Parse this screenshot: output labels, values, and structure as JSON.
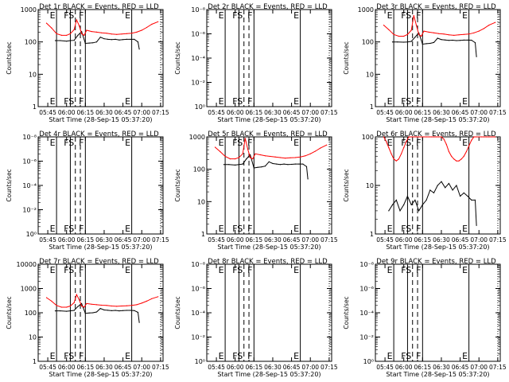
{
  "figure": {
    "ylabel": "Counts/sec",
    "xlabel": "Start Time (28-Sep-15 05:37:20)",
    "time_ticks": [
      "05:45",
      "06:00",
      "06:15",
      "06:30",
      "06:45",
      "07:00",
      "07:15"
    ],
    "event_line_labels": [
      "E",
      "F",
      "S",
      "F",
      "E"
    ],
    "colors": {
      "events": "#000000",
      "lld": "#ff0000",
      "frame": "#000000"
    }
  },
  "chart_data": [
    {
      "type": "line",
      "title": "Det 1r BLACK = Events, RED = LLD",
      "y_scale": "log",
      "yticks": [
        "1",
        "10",
        "100",
        "1000"
      ],
      "ylim": [
        1,
        1000
      ],
      "vlines": [
        {
          "t": "05:52",
          "label": "E",
          "style": "solid"
        },
        {
          "t": "06:03",
          "label": "F",
          "style": "solid"
        },
        {
          "t": "06:07",
          "label": "S",
          "style": "dashed"
        },
        {
          "t": "06:11",
          "label": "",
          "style": "dashed"
        },
        {
          "t": "06:15",
          "label": "F",
          "style": "solid"
        },
        {
          "t": "06:52",
          "label": "E",
          "style": "solid"
        }
      ],
      "series": [
        {
          "name": "Events",
          "color": "#000000",
          "t": [
            "05:51",
            "05:55",
            "06:00",
            "06:03",
            "06:06",
            "06:09",
            "06:12",
            "06:15",
            "06:18",
            "06:21",
            "06:24",
            "06:27",
            "06:30",
            "06:33",
            "06:36",
            "06:39",
            "06:42",
            "06:45",
            "06:48",
            "06:51",
            "06:54",
            "06:57",
            "06:58"
          ],
          "y": [
            110,
            110,
            105,
            110,
            112,
            160,
            210,
            90,
            92,
            94,
            100,
            140,
            125,
            120,
            118,
            120,
            115,
            118,
            120,
            120,
            120,
            100,
            60
          ]
        },
        {
          "name": "LLD",
          "color": "#ff0000",
          "t": [
            "05:44",
            "05:48",
            "05:52",
            "05:56",
            "06:00",
            "06:03",
            "06:06",
            "06:08",
            "06:10",
            "06:12",
            "06:14",
            "06:16",
            "06:20",
            "06:24",
            "06:28",
            "06:32",
            "06:36",
            "06:40",
            "06:44",
            "06:48",
            "06:52",
            "06:56",
            "07:00",
            "07:04",
            "07:08",
            "07:13"
          ],
          "y": [
            380,
            270,
            180,
            160,
            160,
            180,
            240,
            480,
            320,
            180,
            160,
            230,
            210,
            200,
            190,
            185,
            175,
            170,
            175,
            180,
            185,
            200,
            230,
            280,
            350,
            420
          ]
        }
      ]
    },
    {
      "type": "line",
      "title": "Det 2r BLACK = Events, RED = LLD",
      "y_scale": "log",
      "yticks": [
        "10⁰",
        "10⁻²",
        "10⁻⁴",
        "10⁻⁶",
        "10⁻⁸"
      ],
      "ylim": [
        1,
        1e-08
      ],
      "vlines": [
        {
          "t": "05:52",
          "label": "E",
          "style": "solid"
        },
        {
          "t": "06:03",
          "label": "F",
          "style": "solid"
        },
        {
          "t": "06:07",
          "label": "S",
          "style": "dashed"
        },
        {
          "t": "06:11",
          "label": "",
          "style": "dashed"
        },
        {
          "t": "06:15",
          "label": "F",
          "style": "solid"
        },
        {
          "t": "06:52",
          "label": "E",
          "style": "solid"
        }
      ],
      "series": []
    },
    {
      "type": "line",
      "title": "Det 3r BLACK = Events, RED = LLD",
      "y_scale": "log",
      "yticks": [
        "1",
        "10",
        "100",
        "1000"
      ],
      "ylim": [
        1,
        1000
      ],
      "vlines": [
        {
          "t": "05:52",
          "label": "E",
          "style": "solid"
        },
        {
          "t": "06:03",
          "label": "F",
          "style": "solid"
        },
        {
          "t": "06:07",
          "label": "S",
          "style": "dashed"
        },
        {
          "t": "06:11",
          "label": "",
          "style": "dashed"
        },
        {
          "t": "06:15",
          "label": "F",
          "style": "solid"
        },
        {
          "t": "06:52",
          "label": "E",
          "style": "solid"
        }
      ],
      "series": [
        {
          "name": "Events",
          "color": "#000000",
          "t": [
            "05:51",
            "05:55",
            "06:00",
            "06:03",
            "06:06",
            "06:09",
            "06:12",
            "06:15",
            "06:18",
            "06:21",
            "06:24",
            "06:27",
            "06:30",
            "06:33",
            "06:36",
            "06:39",
            "06:42",
            "06:45",
            "06:48",
            "06:51",
            "06:54",
            "06:57",
            "06:58"
          ],
          "y": [
            100,
            100,
            98,
            100,
            104,
            140,
            190,
            85,
            88,
            90,
            96,
            130,
            118,
            115,
            112,
            113,
            110,
            112,
            114,
            114,
            113,
            95,
            35
          ]
        },
        {
          "name": "LLD",
          "color": "#ff0000",
          "t": [
            "05:44",
            "05:48",
            "05:52",
            "05:56",
            "06:00",
            "06:03",
            "06:06",
            "06:08",
            "06:10",
            "06:12",
            "06:14",
            "06:16",
            "06:20",
            "06:24",
            "06:28",
            "06:32",
            "06:36",
            "06:40",
            "06:44",
            "06:48",
            "06:52",
            "06:56",
            "07:00",
            "07:04",
            "07:08",
            "07:13"
          ],
          "y": [
            330,
            240,
            170,
            150,
            150,
            170,
            230,
            650,
            330,
            170,
            150,
            215,
            200,
            190,
            180,
            175,
            165,
            160,
            165,
            170,
            175,
            190,
            215,
            260,
            330,
            400
          ]
        }
      ]
    },
    {
      "type": "line",
      "title": "Det 4r BLACK = Events, RED = LLD",
      "y_scale": "log",
      "yticks": [
        "10⁰",
        "10⁻²",
        "10⁻⁴",
        "10⁻⁶",
        "10⁻⁸"
      ],
      "ylim": [
        1,
        1e-08
      ],
      "vlines": [
        {
          "t": "05:52",
          "label": "E",
          "style": "solid"
        },
        {
          "t": "06:03",
          "label": "F",
          "style": "solid"
        },
        {
          "t": "06:07",
          "label": "S",
          "style": "dashed"
        },
        {
          "t": "06:11",
          "label": "",
          "style": "dashed"
        },
        {
          "t": "06:15",
          "label": "F",
          "style": "solid"
        },
        {
          "t": "06:52",
          "label": "E",
          "style": "solid"
        }
      ],
      "series": []
    },
    {
      "type": "line",
      "title": "Det 5r BLACK = Events, RED = LLD",
      "y_scale": "log",
      "yticks": [
        "1",
        "10",
        "100",
        "1000"
      ],
      "ylim": [
        1,
        1000
      ],
      "vlines": [
        {
          "t": "05:52",
          "label": "E",
          "style": "solid"
        },
        {
          "t": "06:03",
          "label": "F",
          "style": "solid"
        },
        {
          "t": "06:07",
          "label": "S",
          "style": "dashed"
        },
        {
          "t": "06:11",
          "label": "",
          "style": "dashed"
        },
        {
          "t": "06:15",
          "label": "F",
          "style": "solid"
        },
        {
          "t": "06:52",
          "label": "E",
          "style": "solid"
        }
      ],
      "series": [
        {
          "name": "Events",
          "color": "#000000",
          "t": [
            "05:51",
            "05:55",
            "06:00",
            "06:03",
            "06:06",
            "06:09",
            "06:12",
            "06:15",
            "06:18",
            "06:21",
            "06:24",
            "06:27",
            "06:30",
            "06:33",
            "06:36",
            "06:39",
            "06:42",
            "06:45",
            "06:48",
            "06:51",
            "06:54",
            "06:57",
            "06:58"
          ],
          "y": [
            140,
            140,
            135,
            140,
            145,
            210,
            280,
            110,
            115,
            118,
            125,
            170,
            150,
            145,
            140,
            145,
            140,
            142,
            145,
            145,
            145,
            120,
            50
          ]
        },
        {
          "name": "LLD",
          "color": "#ff0000",
          "t": [
            "05:44",
            "05:48",
            "05:52",
            "05:56",
            "06:00",
            "06:03",
            "06:06",
            "06:08",
            "06:10",
            "06:12",
            "06:14",
            "06:16",
            "06:20",
            "06:24",
            "06:28",
            "06:32",
            "06:36",
            "06:40",
            "06:44",
            "06:48",
            "06:52",
            "06:56",
            "07:00",
            "07:04",
            "07:08",
            "07:13"
          ],
          "y": [
            480,
            350,
            250,
            210,
            210,
            230,
            300,
            900,
            420,
            230,
            210,
            300,
            280,
            260,
            250,
            240,
            230,
            220,
            225,
            230,
            240,
            260,
            300,
            360,
            450,
            560
          ]
        }
      ]
    },
    {
      "type": "line",
      "title": "Det 6r BLACK = Events, RED = LLD",
      "y_scale": "log",
      "yticks": [
        "1",
        "10",
        "100"
      ],
      "ylim": [
        1,
        100
      ],
      "vlines": [
        {
          "t": "05:52",
          "label": "E",
          "style": "solid"
        },
        {
          "t": "06:03",
          "label": "F",
          "style": "solid"
        },
        {
          "t": "06:07",
          "label": "S",
          "style": "dashed"
        },
        {
          "t": "06:11",
          "label": "",
          "style": "dashed"
        },
        {
          "t": "06:15",
          "label": "F",
          "style": "solid"
        },
        {
          "t": "06:52",
          "label": "E",
          "style": "solid"
        }
      ],
      "series": [
        {
          "name": "Events",
          "color": "#000000",
          "t": [
            "05:48",
            "05:51",
            "05:54",
            "05:57",
            "06:00",
            "06:03",
            "06:06",
            "06:09",
            "06:12",
            "06:15",
            "06:18",
            "06:21",
            "06:24",
            "06:27",
            "06:30",
            "06:33",
            "06:36",
            "06:39",
            "06:42",
            "06:45",
            "06:48",
            "06:51",
            "06:54",
            "06:57",
            "06:58"
          ],
          "y": [
            3,
            4,
            5,
            3,
            4,
            6,
            4,
            5,
            3,
            4,
            5,
            8,
            7,
            10,
            12,
            9,
            11,
            8,
            10,
            6,
            7,
            6,
            5,
            5,
            1.5
          ]
        },
        {
          "name": "LLD",
          "color": "#ff0000",
          "t": [
            "05:44",
            "05:46",
            "05:48",
            "05:50",
            "05:52",
            "05:54",
            "05:56",
            "05:58",
            "06:00",
            "06:02",
            "06:04",
            "06:06",
            "06:08",
            "06:10",
            "06:12",
            "06:14",
            "06:16",
            "06:18",
            "06:20",
            "06:22",
            "06:24",
            "06:26",
            "06:28",
            "06:30",
            "06:32",
            "06:34",
            "06:36",
            "06:38",
            "06:40",
            "06:42",
            "06:44",
            "06:46",
            "06:48",
            "06:50",
            "06:52",
            "06:54",
            "06:56",
            "06:58",
            "07:00",
            "07:02",
            "07:04",
            "07:06",
            "07:08",
            "07:10",
            "07:12",
            "07:13"
          ],
          "y": [
            100,
            80,
            60,
            45,
            35,
            32,
            35,
            45,
            60,
            80,
            100,
            100,
            100,
            100,
            100,
            100,
            100,
            100,
            100,
            100,
            100,
            100,
            100,
            100,
            90,
            70,
            50,
            40,
            35,
            32,
            32,
            35,
            40,
            50,
            65,
            85,
            100,
            100,
            100,
            100,
            100,
            100,
            100,
            100,
            100,
            100
          ]
        }
      ]
    },
    {
      "type": "line",
      "title": "Det 7r BLACK = Events, RED = LLD",
      "y_scale": "log",
      "yticks": [
        "1",
        "10",
        "100",
        "1000",
        "10000"
      ],
      "ylim": [
        1,
        10000
      ],
      "vlines": [
        {
          "t": "05:52",
          "label": "E",
          "style": "solid"
        },
        {
          "t": "06:03",
          "label": "F",
          "style": "solid"
        },
        {
          "t": "06:07",
          "label": "S",
          "style": "dashed"
        },
        {
          "t": "06:11",
          "label": "",
          "style": "dashed"
        },
        {
          "t": "06:15",
          "label": "F",
          "style": "solid"
        },
        {
          "t": "06:52",
          "label": "E",
          "style": "solid"
        }
      ],
      "series": [
        {
          "name": "Events",
          "color": "#000000",
          "t": [
            "05:51",
            "05:55",
            "06:00",
            "06:03",
            "06:06",
            "06:09",
            "06:12",
            "06:15",
            "06:18",
            "06:21",
            "06:24",
            "06:27",
            "06:30",
            "06:33",
            "06:36",
            "06:39",
            "06:42",
            "06:45",
            "06:48",
            "06:51",
            "06:54",
            "06:57",
            "06:58"
          ],
          "y": [
            120,
            120,
            115,
            120,
            125,
            180,
            240,
            95,
            98,
            100,
            108,
            150,
            130,
            126,
            122,
            125,
            120,
            123,
            125,
            125,
            124,
            104,
            40
          ]
        },
        {
          "name": "LLD",
          "color": "#ff0000",
          "t": [
            "05:44",
            "05:48",
            "05:52",
            "05:56",
            "06:00",
            "06:03",
            "06:06",
            "06:08",
            "06:10",
            "06:12",
            "06:14",
            "06:16",
            "06:20",
            "06:24",
            "06:28",
            "06:32",
            "06:36",
            "06:40",
            "06:44",
            "06:48",
            "06:52",
            "06:56",
            "07:00",
            "07:04",
            "07:08",
            "07:13"
          ],
          "y": [
            420,
            300,
            200,
            170,
            170,
            190,
            260,
            560,
            350,
            190,
            170,
            240,
            225,
            215,
            205,
            200,
            190,
            185,
            190,
            195,
            200,
            215,
            250,
            300,
            380,
            460
          ]
        }
      ]
    },
    {
      "type": "line",
      "title": "Det 8r BLACK = Events, RED = LLD",
      "y_scale": "log",
      "yticks": [
        "10⁰",
        "10⁻²",
        "10⁻⁴",
        "10⁻⁶",
        "10⁻⁸"
      ],
      "ylim": [
        1,
        1e-08
      ],
      "vlines": [
        {
          "t": "05:52",
          "label": "E",
          "style": "solid"
        },
        {
          "t": "06:03",
          "label": "F",
          "style": "solid"
        },
        {
          "t": "06:07",
          "label": "S",
          "style": "dashed"
        },
        {
          "t": "06:11",
          "label": "",
          "style": "dashed"
        },
        {
          "t": "06:15",
          "label": "F",
          "style": "solid"
        },
        {
          "t": "06:52",
          "label": "E",
          "style": "solid"
        }
      ],
      "series": []
    },
    {
      "type": "line",
      "title": "Det 9r BLACK = Events, RED = LLD",
      "y_scale": "log",
      "yticks": [
        "10⁰",
        "10⁻²",
        "10⁻⁴",
        "10⁻⁶",
        "10⁻⁸"
      ],
      "ylim": [
        1,
        1e-08
      ],
      "vlines": [
        {
          "t": "05:52",
          "label": "E",
          "style": "solid"
        },
        {
          "t": "06:03",
          "label": "F",
          "style": "solid"
        },
        {
          "t": "06:07",
          "label": "S",
          "style": "dashed"
        },
        {
          "t": "06:11",
          "label": "",
          "style": "dashed"
        },
        {
          "t": "06:15",
          "label": "F",
          "style": "solid"
        },
        {
          "t": "06:52",
          "label": "E",
          "style": "solid"
        }
      ],
      "series": []
    }
  ]
}
